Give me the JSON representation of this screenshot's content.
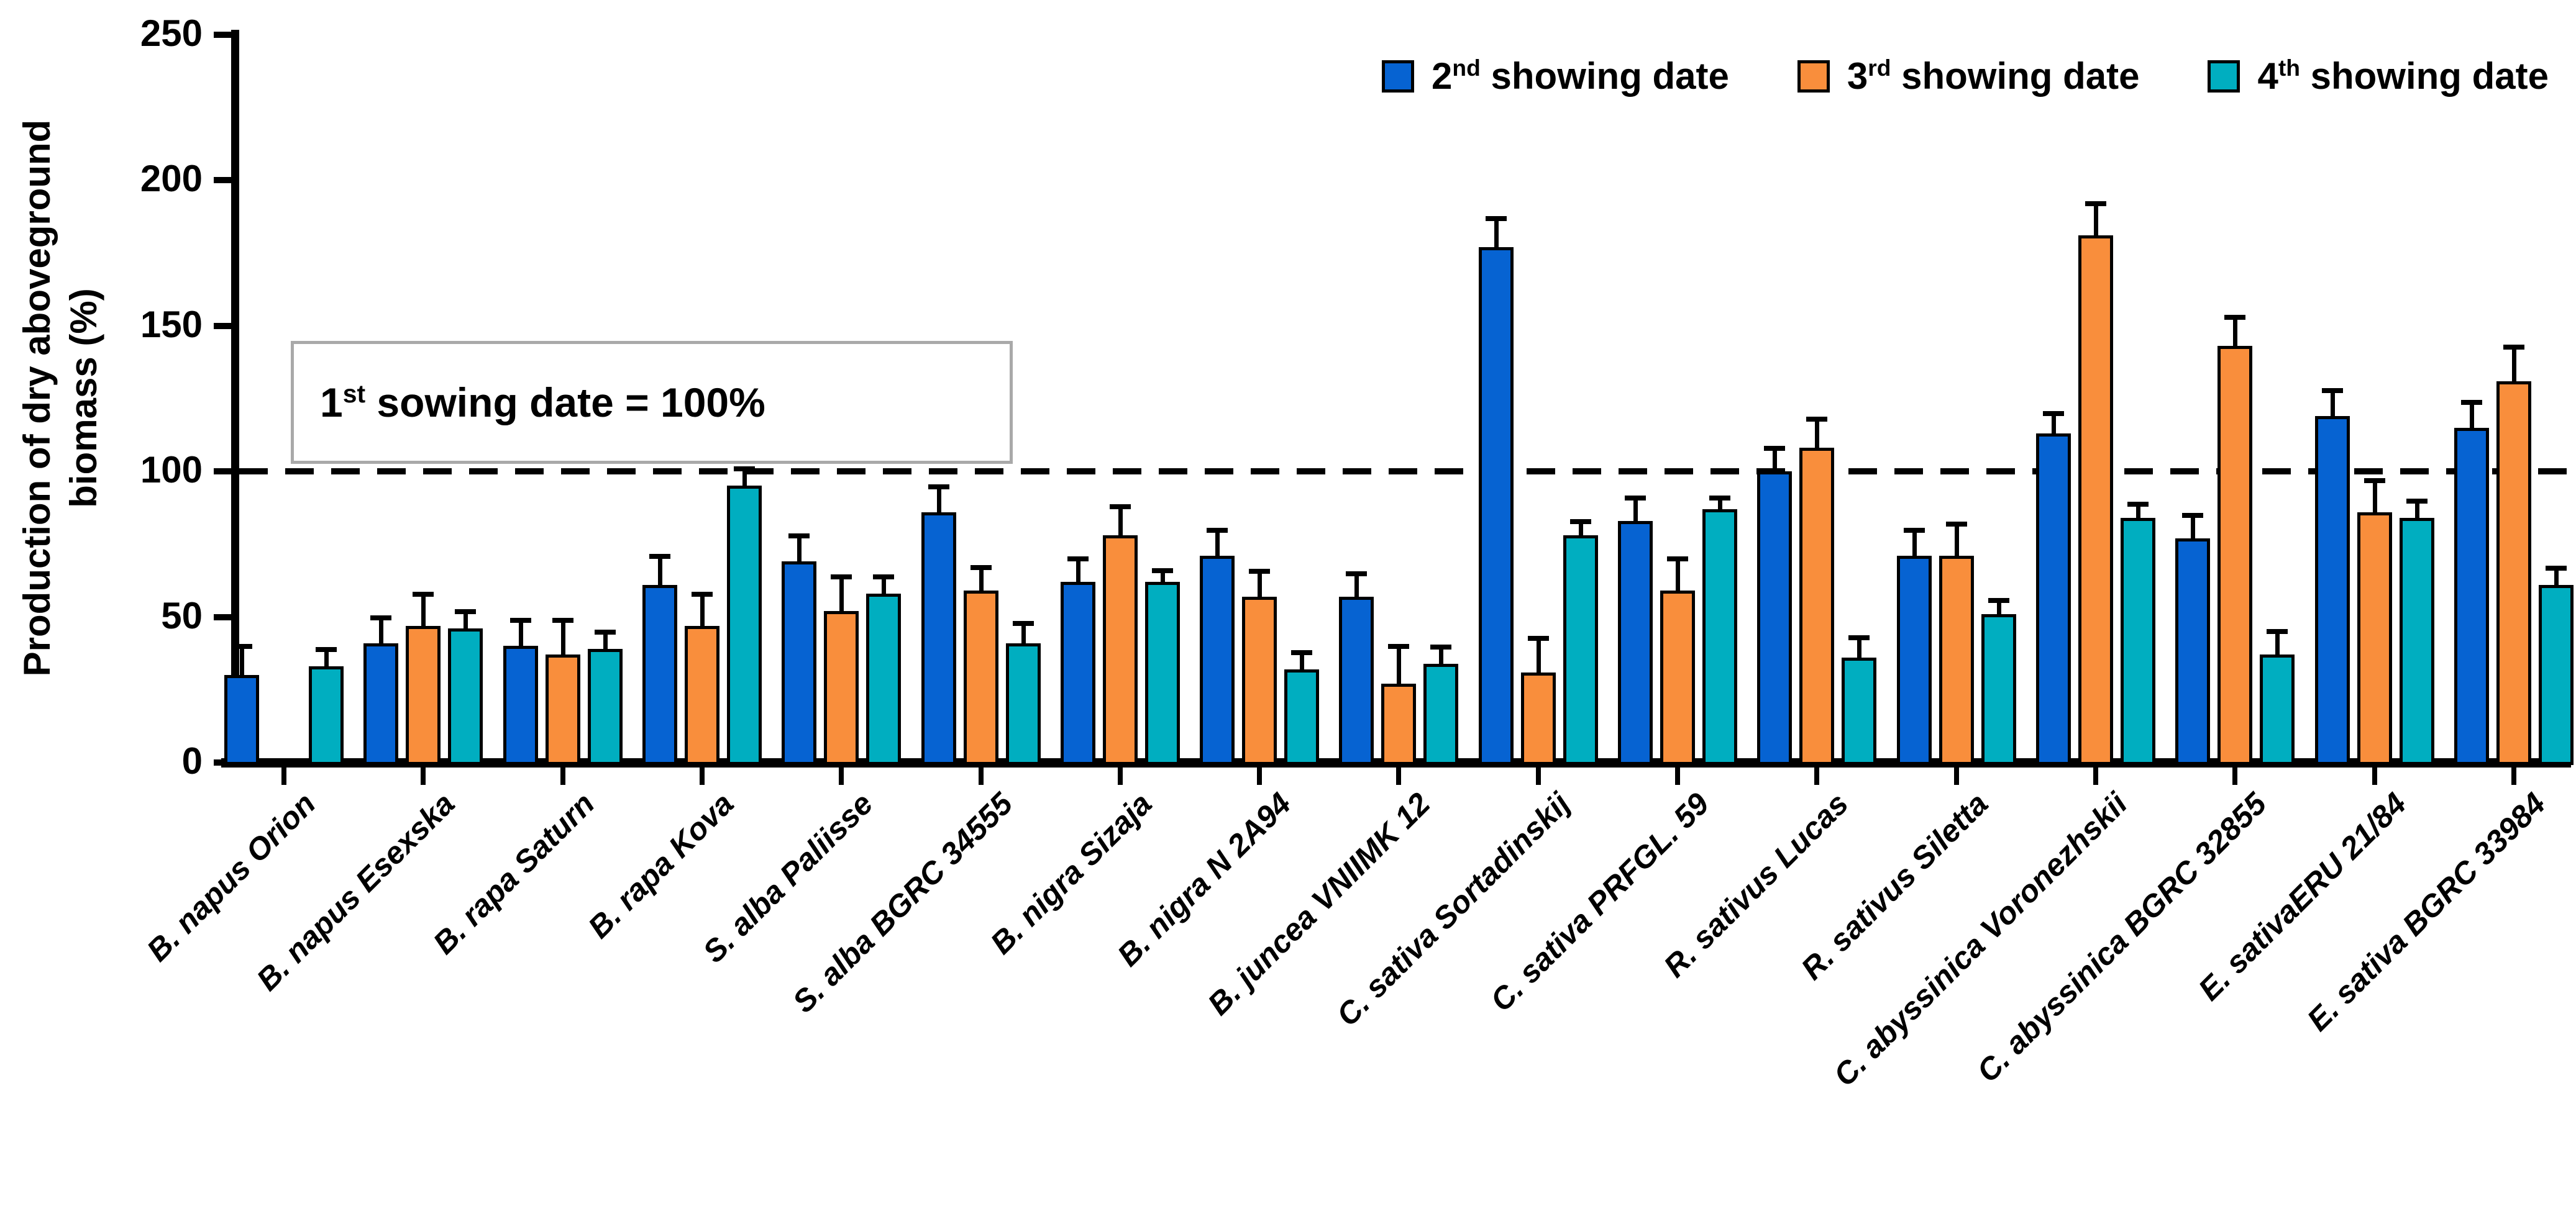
{
  "chart_data": {
    "type": "bar",
    "title": "",
    "ylabel": "Production of dry aboveground biomass (%)",
    "ylabel_lines": [
      "Production of dry aboveground",
      "biomass (%)"
    ],
    "ylim": [
      0,
      250
    ],
    "yticks": [
      0,
      50,
      100,
      150,
      200,
      250
    ],
    "grid": "off",
    "legend_position": "top-right",
    "reference_line": {
      "value": 100,
      "style": "dashed",
      "label_prefix": "1",
      "label_sup": "st",
      "label_rest": " sowing date = 100%"
    },
    "categories": [
      "B. napus Orion",
      "B. napus Esexska",
      "B. rapa Saturn",
      "B. rapa Kova",
      "S. alba Paliisse",
      "S. alba BGRC 34555",
      "B. nigra Sizaja",
      "B. nigra N 2A94",
      "B. juncea VNIIMK 12",
      "C. sativa Sortadinskij",
      "C. sativa PRFGL. 59",
      "R. sativus Lucas",
      "R. sativus Siletta",
      "C. abyssinica Voronezhskii",
      "C. abyssinica BGRC 32855",
      "E. sativaERU 21/84",
      "E. sativa BGRC 33984"
    ],
    "series": [
      {
        "name": "2nd showing date",
        "ordinal": "2",
        "ordinal_suffix": "nd",
        "label_rest": " showing date",
        "color": "#0663D2",
        "values": [
          30,
          41,
          40,
          61,
          69,
          86,
          62,
          71,
          57,
          177,
          83,
          100,
          71,
          113,
          77,
          119,
          115
        ],
        "errors": [
          10,
          9,
          9,
          10,
          9,
          9,
          8,
          9,
          8,
          10,
          8,
          8,
          9,
          7,
          8,
          9,
          9
        ]
      },
      {
        "name": "3rd showing date",
        "ordinal": "3",
        "ordinal_suffix": "rd",
        "label_rest": " showing date",
        "color": "#F98E3C",
        "values": [
          null,
          47,
          37,
          47,
          52,
          59,
          78,
          57,
          27,
          31,
          59,
          108,
          71,
          181,
          143,
          86,
          131
        ],
        "errors": [
          null,
          11,
          12,
          11,
          12,
          8,
          10,
          9,
          13,
          12,
          11,
          10,
          11,
          11,
          10,
          11,
          12
        ]
      },
      {
        "name": "4th showing date",
        "ordinal": "4",
        "ordinal_suffix": "th",
        "label_rest": " showing date",
        "color": "#00AEC0",
        "values": [
          33,
          46,
          39,
          95,
          58,
          41,
          62,
          32,
          34,
          78,
          87,
          36,
          51,
          84,
          37,
          84,
          61
        ],
        "errors": [
          6,
          6,
          6,
          6,
          6,
          7,
          4,
          6,
          6,
          5,
          4,
          7,
          5,
          5,
          8,
          6,
          6
        ]
      }
    ],
    "colors": {
      "bar_outline": "#000000",
      "reference_box_border": "#a9a9a9",
      "axis": "#000000"
    }
  }
}
